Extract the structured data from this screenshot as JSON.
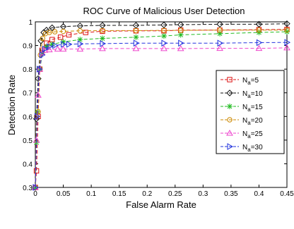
{
  "chart_data": {
    "type": "line",
    "title": "ROC Curve of Malicious User Detection",
    "xlabel": "False Alarm Rate",
    "ylabel": "Detection Rate",
    "xlim": [
      0,
      0.45
    ],
    "ylim": [
      0.3,
      1
    ],
    "xticks": [
      "0",
      "0.05",
      "0.1",
      "0.15",
      "0.2",
      "0.25",
      "0.3",
      "0.35",
      "0.4",
      "0.45"
    ],
    "yticks": [
      "0.3",
      "0.4",
      "0.5",
      "0.6",
      "0.7",
      "0.8",
      "0.9",
      "1"
    ],
    "grid": false,
    "legend_position": "right",
    "series": [
      {
        "name": "N_a=5",
        "legend_base": "N",
        "legend_sub": "a",
        "legend_suffix": "=5",
        "color": "#dd1111",
        "marker": "square",
        "x": [
          0,
          0.002,
          0.005,
          0.008,
          0.012,
          0.02,
          0.03,
          0.045,
          0.06,
          0.09,
          0.12,
          0.18,
          0.23,
          0.26,
          0.33,
          0.4,
          0.45
        ],
        "y": [
          0.3,
          0.37,
          0.6,
          0.8,
          0.88,
          0.91,
          0.925,
          0.935,
          0.945,
          0.955,
          0.96,
          0.962,
          0.962,
          0.965,
          0.965,
          0.967,
          0.968
        ]
      },
      {
        "name": "N_a=10",
        "legend_base": "N",
        "legend_sub": "a",
        "legend_suffix": "=10",
        "color": "#111111",
        "marker": "diamond",
        "x": [
          0,
          0.002,
          0.005,
          0.01,
          0.015,
          0.02,
          0.03,
          0.05,
          0.08,
          0.12,
          0.18,
          0.23,
          0.26,
          0.33,
          0.4,
          0.45
        ],
        "y": [
          0.3,
          0.59,
          0.76,
          0.92,
          0.955,
          0.965,
          0.975,
          0.98,
          0.983,
          0.985,
          0.985,
          0.987,
          0.988,
          0.99,
          0.99,
          0.992
        ]
      },
      {
        "name": "N_a=15",
        "legend_base": "N",
        "legend_sub": "a",
        "legend_suffix": "=15",
        "color": "#22bb22",
        "marker": "star",
        "x": [
          0,
          0.002,
          0.004,
          0.008,
          0.013,
          0.02,
          0.03,
          0.05,
          0.08,
          0.12,
          0.18,
          0.23,
          0.26,
          0.33,
          0.4,
          0.45
        ],
        "y": [
          0.3,
          0.49,
          0.62,
          0.8,
          0.87,
          0.895,
          0.905,
          0.915,
          0.925,
          0.93,
          0.935,
          0.94,
          0.945,
          0.95,
          0.955,
          0.958
        ]
      },
      {
        "name": "N_a=20",
        "legend_base": "N",
        "legend_sub": "a",
        "legend_suffix": "=20",
        "color": "#cc8800",
        "marker": "circle",
        "x": [
          0,
          0.002,
          0.005,
          0.009,
          0.013,
          0.018,
          0.025,
          0.035,
          0.05,
          0.08,
          0.12,
          0.18,
          0.23,
          0.26,
          0.33,
          0.4,
          0.45
        ],
        "y": [
          0.3,
          0.6,
          0.62,
          0.86,
          0.93,
          0.95,
          0.955,
          0.958,
          0.96,
          0.962,
          0.963,
          0.963,
          0.964,
          0.964,
          0.965,
          0.965,
          0.965
        ]
      },
      {
        "name": "N_a=25",
        "legend_base": "N",
        "legend_sub": "a",
        "legend_suffix": "=25",
        "color": "#ee44cc",
        "marker": "triangle-up",
        "x": [
          0,
          0.002,
          0.005,
          0.008,
          0.012,
          0.017,
          0.025,
          0.04,
          0.05,
          0.08,
          0.12,
          0.18,
          0.23,
          0.26,
          0.33,
          0.4,
          0.45
        ],
        "y": [
          0.3,
          0.5,
          0.69,
          0.8,
          0.87,
          0.88,
          0.882,
          0.885,
          0.885,
          0.885,
          0.887,
          0.887,
          0.887,
          0.887,
          0.888,
          0.888,
          0.89
        ]
      },
      {
        "name": "N_a=30",
        "legend_base": "N",
        "legend_sub": "a",
        "legend_suffix": "=30",
        "color": "#2233dd",
        "marker": "triangle-right",
        "x": [
          0,
          0.003,
          0.007,
          0.012,
          0.017,
          0.025,
          0.035,
          0.05,
          0.06,
          0.08,
          0.12,
          0.18,
          0.23,
          0.26,
          0.33,
          0.4,
          0.45
        ],
        "y": [
          0.3,
          0.6,
          0.8,
          0.86,
          0.885,
          0.895,
          0.9,
          0.905,
          0.905,
          0.907,
          0.908,
          0.91,
          0.91,
          0.91,
          0.91,
          0.912,
          0.913
        ]
      }
    ]
  }
}
